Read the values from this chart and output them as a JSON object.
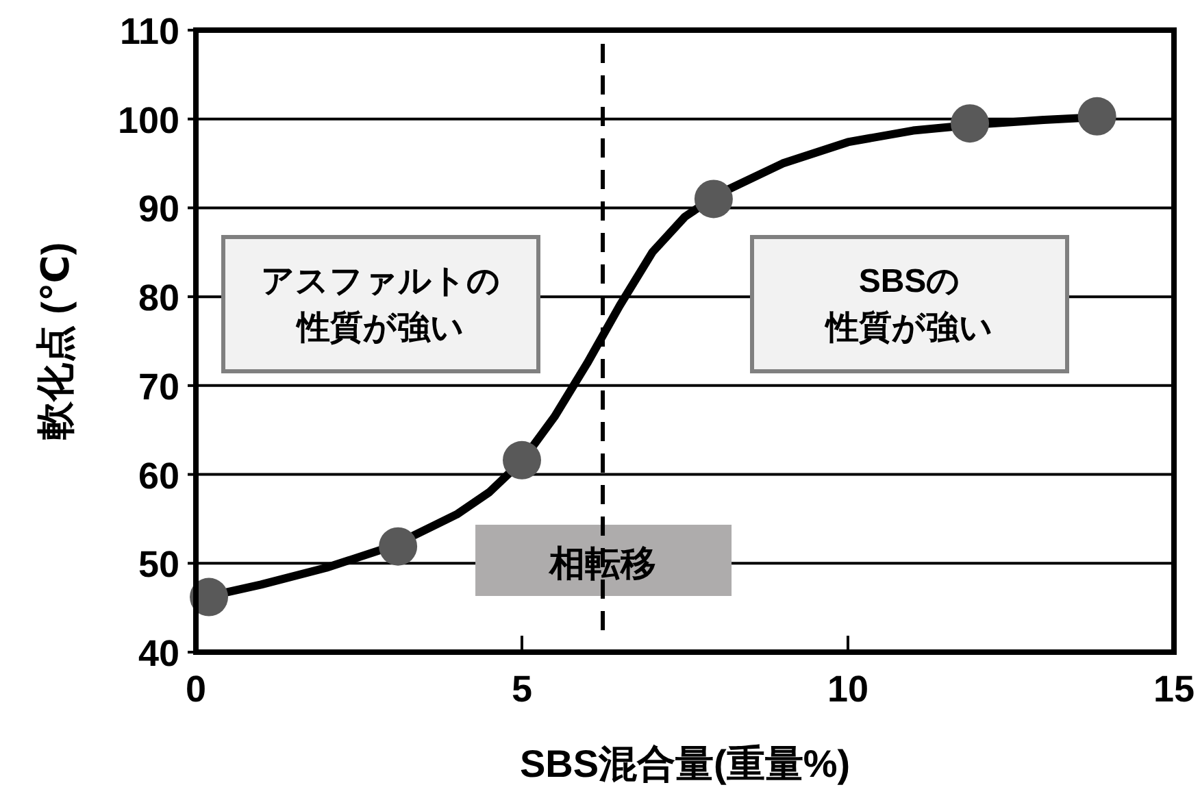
{
  "chart_data": {
    "type": "scatter",
    "xlabel": "SBS混合量(重量%)",
    "ylabel": "軟化点 (℃)",
    "xlim": [
      0,
      15
    ],
    "xticks": [
      0,
      5,
      10,
      15
    ],
    "ylim": [
      40,
      110
    ],
    "yticks": [
      40,
      50,
      60,
      70,
      80,
      90,
      100,
      110
    ],
    "grid": "y",
    "series": [
      {
        "type": "line",
        "color": "#000000",
        "marker": "none",
        "line_style": "solid",
        "x": [
          0.2,
          1,
          2,
          3,
          4,
          4.5,
          5,
          5.5,
          6,
          6.5,
          7,
          7.5,
          8,
          9,
          10,
          11,
          12,
          13,
          13.8
        ],
        "values": [
          46.3,
          47.6,
          49.5,
          51.9,
          55.5,
          58,
          61.5,
          66.5,
          72.5,
          79,
          85,
          89,
          91.5,
          95,
          97.4,
          98.7,
          99.4,
          99.9,
          100.2
        ]
      },
      {
        "color": "#595959",
        "marker": "circle",
        "x": [
          0.2,
          3.1,
          5.0,
          7.94,
          11.87,
          13.82
        ],
        "values": [
          46.2,
          51.9,
          61.6,
          91.0,
          99.5,
          100.3
        ]
      }
    ],
    "ref_lines": [
      {
        "axis": "x",
        "value": 6.24,
        "label": "相転移",
        "line_style": "dashed",
        "color": "#000000"
      }
    ],
    "annotations": [
      "アスファルトの性質が強い",
      "SBSの性質が強い"
    ]
  }
}
